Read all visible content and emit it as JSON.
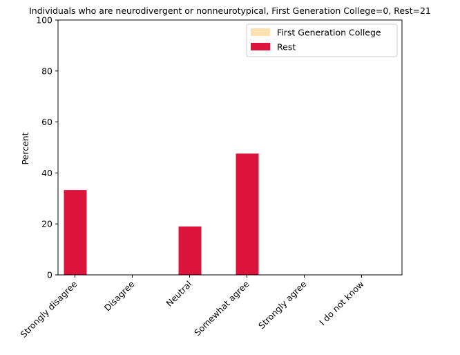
{
  "chart_data": {
    "type": "bar",
    "title": "Individuals who are neurodivergent or nonneurotypical, First Generation College=0, Rest=21",
    "xlabel": "",
    "ylabel": "Percent",
    "ylim": [
      0,
      100
    ],
    "yticks": [
      0,
      20,
      40,
      60,
      80,
      100
    ],
    "categories": [
      "Strongly disagree",
      "Disagree",
      "Neutral",
      "Somewhat agree",
      "Strongly agree",
      "I do not know"
    ],
    "series": [
      {
        "name": "First Generation College",
        "color": "#ffe0b0",
        "values": [
          0,
          0,
          0,
          0,
          0,
          0
        ]
      },
      {
        "name": "Rest",
        "color": "#dc143c",
        "values": [
          33.3,
          0,
          19.0,
          47.6,
          0,
          0
        ]
      }
    ],
    "legend_position": "top-right",
    "grid": false
  }
}
